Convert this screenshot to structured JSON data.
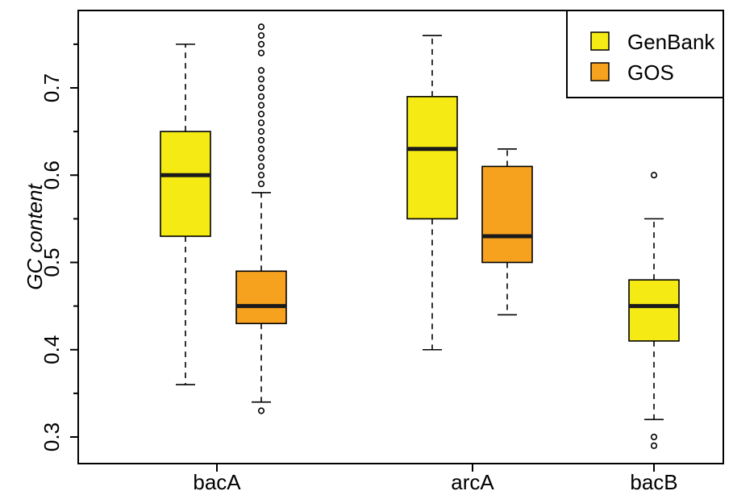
{
  "chart_data": {
    "type": "box",
    "title": "",
    "xlabel": "",
    "ylabel": "GC content",
    "ylim": [
      0.28,
      0.78
    ],
    "y_ticks": [
      "0.3",
      "0.4",
      "0.5",
      "0.6",
      "0.7"
    ],
    "categories": [
      "bacA",
      "arcA",
      "bacB"
    ],
    "series": [
      {
        "name": "GenBank",
        "color": "#f5ea14"
      },
      {
        "name": "GOS",
        "color": "#f7a21e"
      }
    ],
    "boxes": [
      {
        "category": "bacA",
        "series": "GenBank",
        "min": 0.36,
        "q1": 0.53,
        "median": 0.6,
        "q3": 0.65,
        "max": 0.75,
        "outliers": []
      },
      {
        "category": "bacA",
        "series": "GOS",
        "min": 0.34,
        "q1": 0.43,
        "median": 0.45,
        "q3": 0.49,
        "max": 0.58,
        "outliers": [
          0.33,
          0.59,
          0.6,
          0.61,
          0.62,
          0.63,
          0.64,
          0.65,
          0.66,
          0.67,
          0.68,
          0.69,
          0.7,
          0.71,
          0.72,
          0.74,
          0.75,
          0.76,
          0.77
        ]
      },
      {
        "category": "arcA",
        "series": "GenBank",
        "min": 0.4,
        "q1": 0.55,
        "median": 0.63,
        "q3": 0.69,
        "max": 0.76,
        "outliers": []
      },
      {
        "category": "arcA",
        "series": "GOS",
        "min": 0.44,
        "q1": 0.5,
        "median": 0.53,
        "q3": 0.61,
        "max": 0.63,
        "outliers": []
      },
      {
        "category": "bacB",
        "series": "GenBank",
        "min": 0.32,
        "q1": 0.41,
        "median": 0.45,
        "q3": 0.48,
        "max": 0.55,
        "outliers": [
          0.29,
          0.3,
          0.6
        ]
      }
    ],
    "legend_position": "top-right",
    "grid": false
  }
}
